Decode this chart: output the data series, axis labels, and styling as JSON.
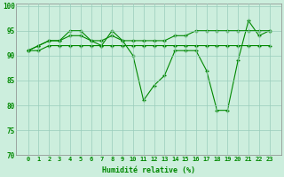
{
  "line1": [
    91,
    92,
    93,
    93,
    95,
    95,
    93,
    92,
    95,
    93,
    90,
    81,
    84,
    86,
    91,
    91,
    91,
    87,
    79,
    79,
    89,
    97,
    94,
    95
  ],
  "line2": [
    91,
    92,
    93,
    93,
    94,
    94,
    93,
    93,
    94,
    93,
    93,
    93,
    93,
    93,
    94,
    94,
    95,
    95,
    95,
    95,
    95,
    95,
    95,
    95
  ],
  "line3": [
    91,
    91,
    92,
    92,
    92,
    92,
    92,
    92,
    92,
    92,
    92,
    92,
    92,
    92,
    92,
    92,
    92,
    92,
    92,
    92,
    92,
    92,
    92,
    92
  ],
  "x": [
    0,
    1,
    2,
    3,
    4,
    5,
    6,
    7,
    8,
    9,
    10,
    11,
    12,
    13,
    14,
    15,
    16,
    17,
    18,
    19,
    20,
    21,
    22,
    23
  ],
  "line_color": "#008800",
  "bg_color": "#cceedd",
  "grid_color": "#99ccbb",
  "xlabel": "Humidité relative (%)",
  "ylim": [
    70,
    100
  ],
  "yticks": [
    70,
    75,
    80,
    85,
    90,
    95,
    100
  ],
  "xticks": [
    0,
    1,
    2,
    3,
    4,
    5,
    6,
    7,
    8,
    9,
    10,
    11,
    12,
    13,
    14,
    15,
    16,
    17,
    18,
    19,
    20,
    21,
    22,
    23
  ]
}
